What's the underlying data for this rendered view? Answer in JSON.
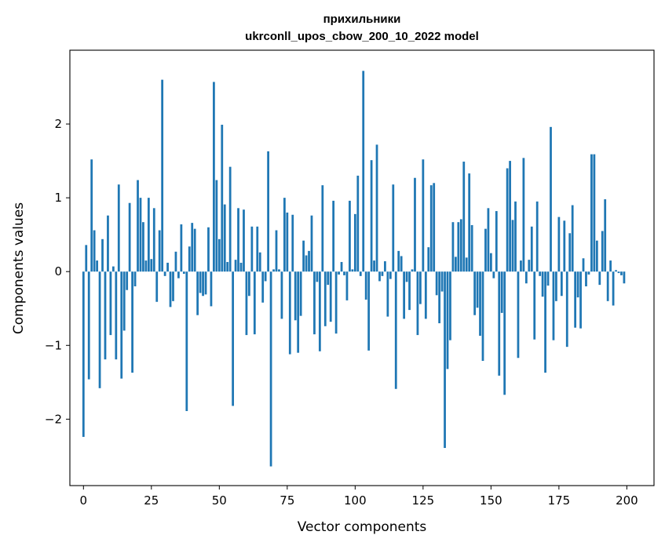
{
  "chart_data": {
    "type": "bar",
    "title_line1": "прихильники",
    "title_line2": "ukrconll_upos_cbow_200_10_2022 model",
    "xlabel": "Vector components",
    "ylabel": "Components values",
    "xlim": [
      -5,
      210
    ],
    "ylim": [
      -2.9,
      3.0
    ],
    "x_ticks": [
      0,
      25,
      50,
      75,
      100,
      125,
      150,
      175,
      200
    ],
    "x_tick_labels": [
      "0",
      "25",
      "50",
      "75",
      "100",
      "125",
      "150",
      "175",
      "200"
    ],
    "y_ticks": [
      -2,
      -1,
      0,
      1,
      2
    ],
    "y_tick_labels": [
      "−2",
      "−1",
      "0",
      "1",
      "2"
    ],
    "grid": false,
    "bar_color": "#1f77b4",
    "series": [
      {
        "x_start": 0,
        "values": [
          -2.24,
          0.36,
          -1.46,
          1.52,
          0.56,
          0.15,
          -1.58,
          0.44,
          -1.19,
          0.76,
          -0.86,
          0.07,
          -1.19,
          1.18,
          -1.45,
          -0.8,
          -0.25,
          0.93,
          -1.37,
          -0.2,
          1.24,
          1.0,
          0.67,
          0.15,
          1.0,
          0.17,
          0.86,
          -0.41,
          0.56,
          2.6,
          -0.06,
          0.12,
          -0.48,
          -0.4,
          0.27,
          -0.09,
          0.64,
          -0.03,
          -1.89,
          0.34,
          0.66,
          0.58,
          -0.59,
          -0.29,
          -0.33,
          -0.31,
          0.6,
          -0.47,
          2.57,
          1.24,
          0.44,
          1.99,
          0.91,
          0.13,
          1.42,
          -1.82,
          0.16,
          0.86,
          0.12,
          0.84,
          -0.86,
          -0.33,
          0.61,
          -0.85,
          0.61,
          0.26,
          -0.42,
          -0.13,
          1.63,
          -2.64,
          0.03,
          0.56,
          0.03,
          -0.64,
          1.0,
          0.8,
          -1.12,
          0.77,
          -0.66,
          -1.1,
          -0.6,
          0.42,
          0.22,
          0.28,
          0.76,
          -0.85,
          -0.14,
          -1.08,
          1.17,
          -0.74,
          -0.18,
          -0.68,
          0.96,
          -0.84,
          -0.04,
          0.13,
          -0.05,
          -0.39,
          0.96,
          0.03,
          0.78,
          1.3,
          -0.06,
          2.72,
          -0.38,
          -1.07,
          1.51,
          0.15,
          1.72,
          -0.13,
          -0.06,
          0.14,
          -0.61,
          -0.1,
          1.18,
          -1.59,
          0.28,
          0.21,
          -0.64,
          -0.14,
          -0.52,
          0.03,
          1.27,
          -0.86,
          -0.44,
          1.52,
          -0.64,
          0.33,
          1.17,
          1.2,
          -0.32,
          -0.7,
          -0.27,
          -2.39,
          -1.32,
          -0.93,
          0.67,
          0.2,
          0.67,
          0.71,
          1.49,
          0.19,
          1.33,
          0.63,
          -0.59,
          -0.49,
          -0.87,
          -1.21,
          0.58,
          0.86,
          0.25,
          -0.09,
          0.82,
          -1.41,
          -0.56,
          -1.67,
          1.4,
          1.5,
          0.7,
          0.95,
          -1.17,
          0.15,
          1.54,
          -0.16,
          0.16,
          0.61,
          -0.92,
          0.95,
          -0.06,
          -0.34,
          -1.37,
          -0.19,
          1.96,
          -0.93,
          -0.4,
          0.74,
          -0.33,
          0.69,
          -1.02,
          0.52,
          0.9,
          -0.76,
          -0.35,
          -0.77,
          0.18,
          -0.2,
          -0.04,
          1.59,
          1.59,
          0.42,
          -0.18,
          0.55,
          0.98,
          -0.4,
          0.15,
          -0.46,
          0.02,
          -0.02,
          -0.05,
          -0.16
        ]
      }
    ]
  }
}
